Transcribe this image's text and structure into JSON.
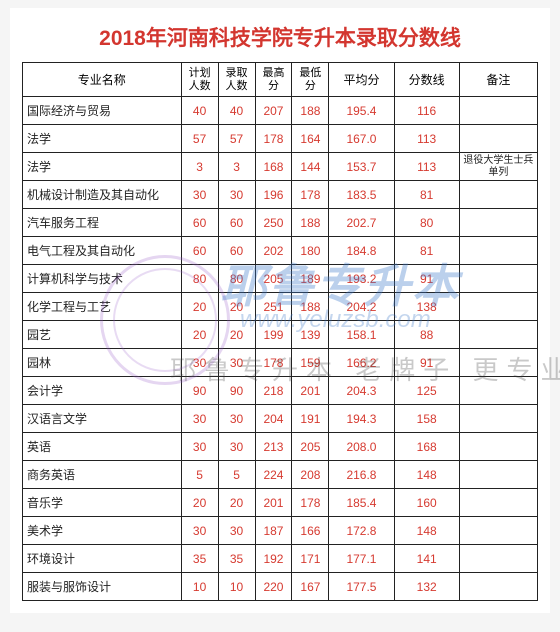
{
  "title": {
    "text": "2018年河南科技学院专升本录取分数线",
    "color": "#d3362f"
  },
  "columns": [
    {
      "label": "专业名称"
    },
    {
      "label": "计划人数"
    },
    {
      "label": "录取人数"
    },
    {
      "label": "最高分"
    },
    {
      "label": "最低分"
    },
    {
      "label": "平均分"
    },
    {
      "label": "分数线"
    },
    {
      "label": "备注"
    }
  ],
  "num_color": "#d63a30",
  "rows": [
    {
      "major": "国际经济与贸易",
      "plan": "40",
      "admit": "40",
      "max": "207",
      "min": "188",
      "avg": "195.4",
      "cutoff": "116",
      "remark": ""
    },
    {
      "major": "法学",
      "plan": "57",
      "admit": "57",
      "max": "178",
      "min": "164",
      "avg": "167.0",
      "cutoff": "113",
      "remark": ""
    },
    {
      "major": "法学",
      "plan": "3",
      "admit": "3",
      "max": "168",
      "min": "144",
      "avg": "153.7",
      "cutoff": "113",
      "remark": "退役大学生士兵单列"
    },
    {
      "major": "机械设计制造及其自动化",
      "plan": "30",
      "admit": "30",
      "max": "196",
      "min": "178",
      "avg": "183.5",
      "cutoff": "81",
      "remark": ""
    },
    {
      "major": "汽车服务工程",
      "plan": "60",
      "admit": "60",
      "max": "250",
      "min": "188",
      "avg": "202.7",
      "cutoff": "80",
      "remark": ""
    },
    {
      "major": "电气工程及其自动化",
      "plan": "60",
      "admit": "60",
      "max": "202",
      "min": "180",
      "avg": "184.8",
      "cutoff": "81",
      "remark": ""
    },
    {
      "major": "计算机科学与技术",
      "plan": "80",
      "admit": "80",
      "max": "205",
      "min": "189",
      "avg": "193.2",
      "cutoff": "91",
      "remark": ""
    },
    {
      "major": "化学工程与工艺",
      "plan": "20",
      "admit": "20",
      "max": "251",
      "min": "188",
      "avg": "204.2",
      "cutoff": "138",
      "remark": ""
    },
    {
      "major": "园艺",
      "plan": "20",
      "admit": "20",
      "max": "199",
      "min": "139",
      "avg": "158.1",
      "cutoff": "88",
      "remark": ""
    },
    {
      "major": "园林",
      "plan": "30",
      "admit": "30",
      "max": "178",
      "min": "159",
      "avg": "166.2",
      "cutoff": "91",
      "remark": ""
    },
    {
      "major": "会计学",
      "plan": "90",
      "admit": "90",
      "max": "218",
      "min": "201",
      "avg": "204.3",
      "cutoff": "125",
      "remark": ""
    },
    {
      "major": "汉语言文学",
      "plan": "30",
      "admit": "30",
      "max": "204",
      "min": "191",
      "avg": "194.3",
      "cutoff": "158",
      "remark": ""
    },
    {
      "major": "英语",
      "plan": "30",
      "admit": "30",
      "max": "213",
      "min": "205",
      "avg": "208.0",
      "cutoff": "168",
      "remark": ""
    },
    {
      "major": "商务英语",
      "plan": "5",
      "admit": "5",
      "max": "224",
      "min": "208",
      "avg": "216.8",
      "cutoff": "148",
      "remark": ""
    },
    {
      "major": "音乐学",
      "plan": "20",
      "admit": "20",
      "max": "201",
      "min": "178",
      "avg": "185.4",
      "cutoff": "160",
      "remark": ""
    },
    {
      "major": "美术学",
      "plan": "30",
      "admit": "30",
      "max": "187",
      "min": "166",
      "avg": "172.8",
      "cutoff": "148",
      "remark": ""
    },
    {
      "major": "环境设计",
      "plan": "35",
      "admit": "35",
      "max": "192",
      "min": "171",
      "avg": "177.1",
      "cutoff": "141",
      "remark": ""
    },
    {
      "major": "服装与服饰设计",
      "plan": "10",
      "admit": "10",
      "max": "220",
      "min": "167",
      "avg": "177.5",
      "cutoff": "132",
      "remark": ""
    }
  ],
  "watermark": {
    "big": "耶鲁专升本",
    "url": "www.yeluzsb.com",
    "slogan": "耶鲁专升本 老牌子 更专业"
  }
}
